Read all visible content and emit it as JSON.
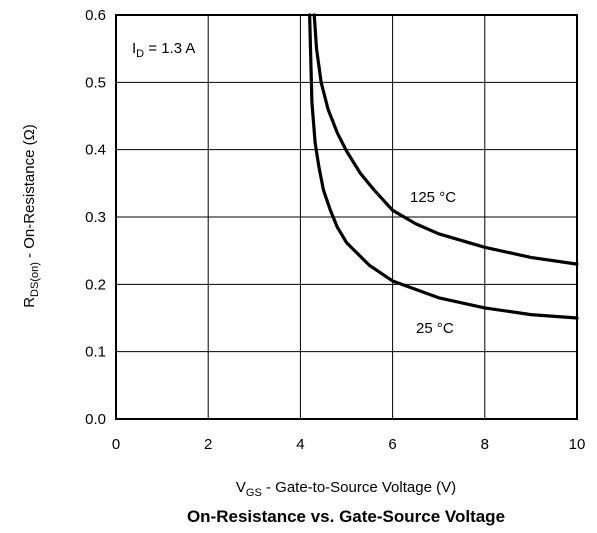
{
  "chart_data": {
    "type": "line",
    "title": "On-Resistance vs. Gate-Source Voltage",
    "xlabel": {
      "main": "V",
      "sub": "GS",
      "rest": " - Gate-to-Source Voltage (V)"
    },
    "ylabel": {
      "main": "R",
      "sub": "DS(on)",
      "rest": " - On-Resistance (Ω)"
    },
    "xlim": [
      0,
      10
    ],
    "ylim": [
      0,
      0.6
    ],
    "xticks": [
      "0",
      "2",
      "4",
      "6",
      "8",
      "10"
    ],
    "yticks": [
      "0.0",
      "0.1",
      "0.2",
      "0.3",
      "0.4",
      "0.5",
      "0.6"
    ],
    "grid": true,
    "condition": {
      "main": "I",
      "sub": "D",
      "rest": " = 1.3 A"
    },
    "series": [
      {
        "name": "125 °C",
        "x": [
          4.3,
          4.35,
          4.45,
          4.6,
          4.8,
          5.0,
          5.3,
          5.6,
          6.0,
          6.5,
          7.0,
          8.0,
          9.0,
          10.0
        ],
        "y": [
          0.6,
          0.55,
          0.5,
          0.46,
          0.425,
          0.398,
          0.365,
          0.34,
          0.31,
          0.29,
          0.275,
          0.255,
          0.24,
          0.23
        ]
      },
      {
        "name": "25 °C",
        "x": [
          4.2,
          4.25,
          4.32,
          4.4,
          4.5,
          4.65,
          4.8,
          5.0,
          5.5,
          6.0,
          7.0,
          8.0,
          9.0,
          10.0
        ],
        "y": [
          0.6,
          0.47,
          0.41,
          0.375,
          0.34,
          0.31,
          0.285,
          0.262,
          0.228,
          0.205,
          0.18,
          0.165,
          0.155,
          0.15
        ]
      }
    ]
  }
}
